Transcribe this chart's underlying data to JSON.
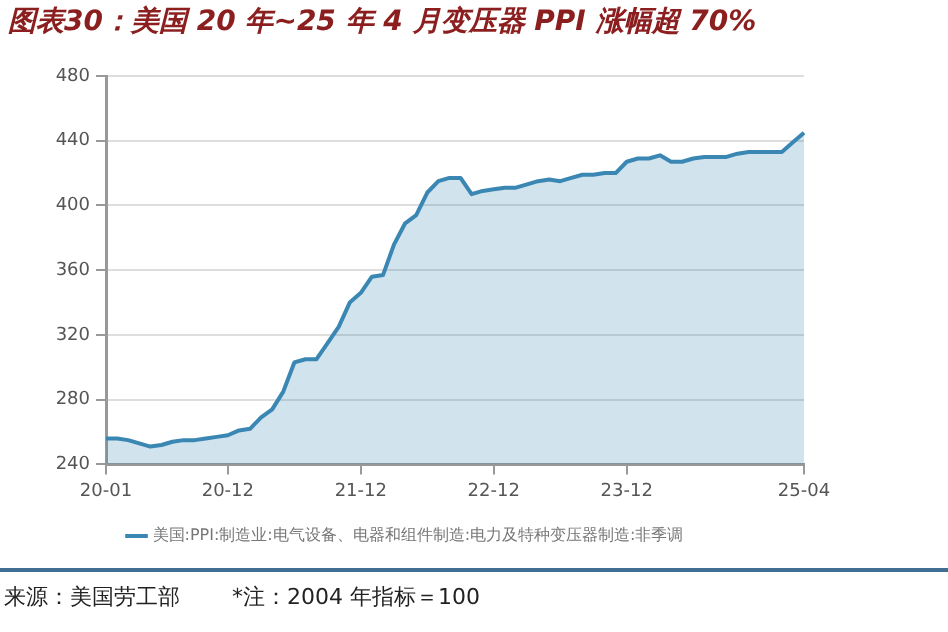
{
  "chart_data": {
    "type": "area",
    "title": "图表30：美国 20 年~25 年 4 月变压器 PPI 涨幅超 70%",
    "categories": [
      "20-01",
      null,
      null,
      null,
      null,
      null,
      null,
      null,
      null,
      null,
      null,
      "20-12",
      null,
      null,
      null,
      null,
      null,
      null,
      null,
      null,
      null,
      null,
      null,
      "21-12",
      null,
      null,
      null,
      null,
      null,
      null,
      null,
      null,
      null,
      null,
      null,
      "22-12",
      null,
      null,
      null,
      null,
      null,
      null,
      null,
      null,
      null,
      null,
      null,
      "23-12",
      null,
      null,
      null,
      null,
      null,
      null,
      null,
      null,
      null,
      null,
      null,
      null,
      null,
      null,
      null,
      "25-04"
    ],
    "series": [
      {
        "name": "美国:PPI:制造业:电气设备、电器和组件制造:电力及特种变压器制造:非季调",
        "color": "#3a87b3",
        "values": [
          256,
          256,
          255,
          253,
          251,
          252,
          254,
          255,
          255,
          256,
          257,
          258,
          261,
          262,
          269,
          274,
          285,
          303,
          305,
          305,
          315,
          325,
          340,
          346,
          356,
          357,
          376,
          389,
          394,
          408,
          415,
          417,
          417,
          407,
          409,
          410,
          411,
          411,
          413,
          415,
          416,
          415,
          417,
          419,
          419,
          420,
          420,
          427,
          429,
          429,
          431,
          427,
          427,
          429,
          430,
          430,
          430,
          432,
          433,
          433,
          433,
          433,
          439,
          445
        ]
      }
    ],
    "ylim": [
      240,
      480
    ],
    "yticks": [
      240,
      280,
      320,
      360,
      400,
      440,
      480
    ],
    "grid": "y",
    "legend": "bottom",
    "marker": "none",
    "line_style": "solid",
    "annotations": [
      "来源：美国劳工部",
      "*注：2004 年指标＝100"
    ]
  }
}
